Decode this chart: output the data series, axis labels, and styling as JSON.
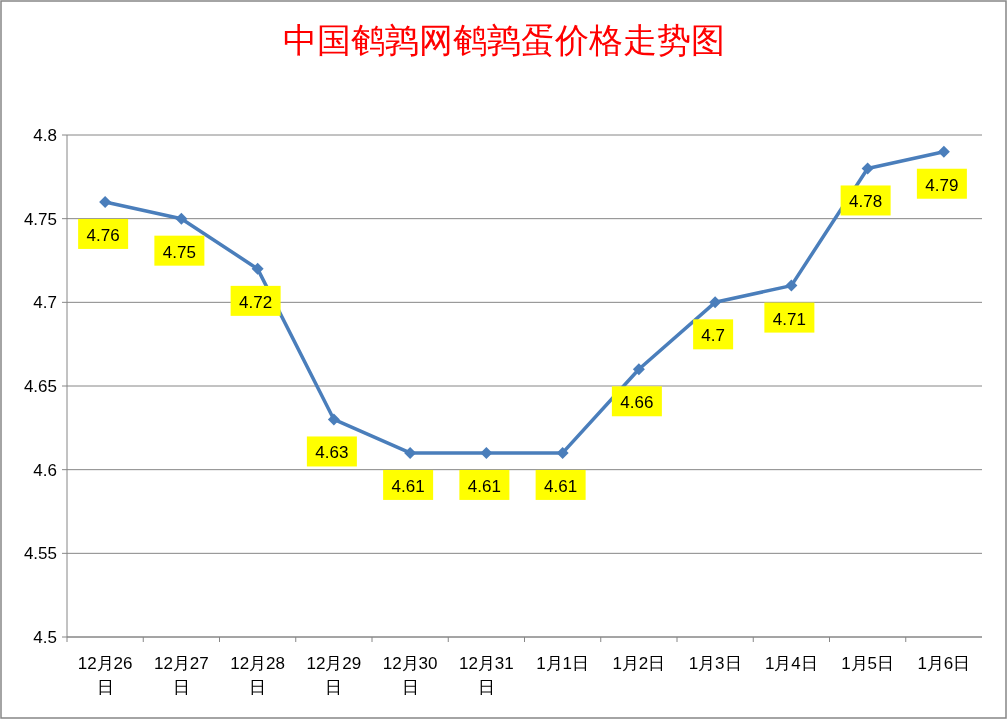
{
  "chart_data": {
    "type": "line",
    "title": "中国鹌鹑网鹌鹑蛋价格走势图",
    "categories": [
      "12月26日",
      "12月27日",
      "12月28日",
      "12月29日",
      "12月30日",
      "12月31日",
      "1月1日",
      "1月2日",
      "1月3日",
      "1月4日",
      "1月5日",
      "1月6日"
    ],
    "series": [
      {
        "color": "#4a7ebb",
        "values": [
          4.76,
          4.75,
          4.72,
          4.63,
          4.61,
          4.61,
          4.61,
          4.66,
          4.7,
          4.71,
          4.78,
          4.79
        ]
      }
    ],
    "ylim": [
      4.5,
      4.8
    ],
    "yticks": [
      4.5,
      4.55,
      4.6,
      4.65,
      4.7,
      4.75,
      4.8
    ],
    "grid": "y",
    "marker": "diamond",
    "line_style": "solid",
    "data_labels": true
  }
}
